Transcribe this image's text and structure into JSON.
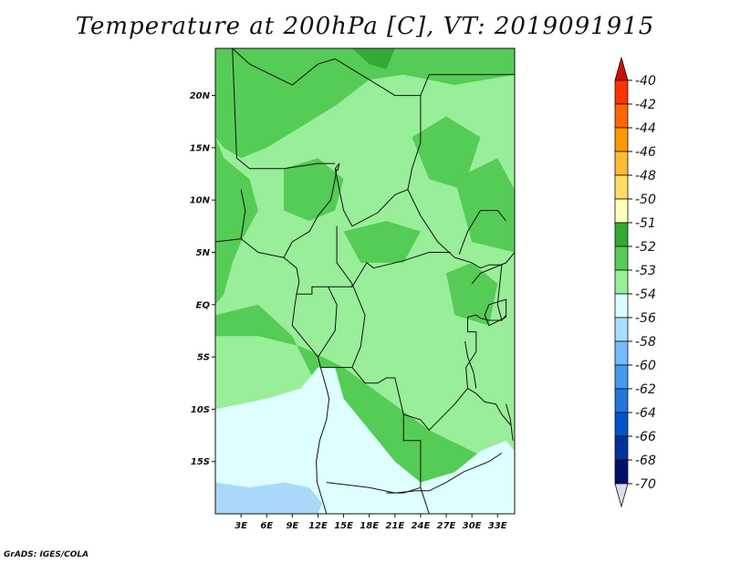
{
  "chart_data": {
    "type": "heatmap",
    "title": "Temperature at 200hPa [C], VT: 2019091915",
    "credit": "GrADS: IGES/COLA",
    "x_ticks": [
      3,
      6,
      9,
      12,
      15,
      18,
      21,
      24,
      27,
      30,
      33
    ],
    "x_tick_labels": [
      "3E",
      "6E",
      "9E",
      "12E",
      "15E",
      "18E",
      "21E",
      "24E",
      "27E",
      "30E",
      "33E"
    ],
    "y_ticks": [
      20,
      15,
      10,
      5,
      0,
      -5,
      -10,
      -15
    ],
    "y_tick_labels": [
      "20N",
      "15N",
      "10N",
      "5N",
      "EQ",
      "5S",
      "10S",
      "15S"
    ],
    "lon_range": [
      0,
      35
    ],
    "lat_range": [
      -20,
      24.5
    ],
    "colorbar": {
      "labels": [
        "-40",
        "-42",
        "-44",
        "-46",
        "-48",
        "-50",
        "-51",
        "-52",
        "-53",
        "-54",
        "-56",
        "-58",
        "-60",
        "-62",
        "-64",
        "-66",
        "-68",
        "-70"
      ],
      "colors": [
        "#cc1100",
        "#ff3300",
        "#ff6600",
        "#ff9900",
        "#ffbb33",
        "#ffdd66",
        "#ffffbb",
        "#33aa33",
        "#55cc55",
        "#99ee99",
        "#dbffff",
        "#aaddff",
        "#77bbff",
        "#4499ee",
        "#2277dd",
        "#0055cc",
        "#003399",
        "#001166",
        "#ddddee"
      ]
    },
    "field_classes": [
      "-51 to -52",
      "-52 to -53",
      "-53 to -54",
      "-54 to -56",
      "-56 to -58"
    ],
    "grid": false
  },
  "colors": {
    "band_52": "#55cc55",
    "band_53": "#99ee99",
    "band_54": "#ddffff",
    "band_56": "#a9d8fb",
    "band_51": "#33aa33",
    "border": "#111111"
  }
}
